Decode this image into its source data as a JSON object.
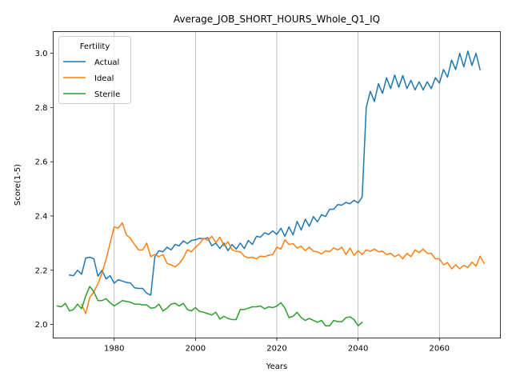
{
  "chart_data": {
    "type": "line",
    "title": "Average_JOB_SHORT_HOURS_Whole_Q1_IQ",
    "xlabel": "Years",
    "ylabel": "Score(1-5)",
    "xlim": [
      1965,
      2075
    ],
    "ylim": [
      1.95,
      3.08
    ],
    "xticks": [
      1980,
      2000,
      2020,
      2040,
      2060
    ],
    "yticks": [
      2.0,
      2.2,
      2.4,
      2.6,
      2.8,
      3.0
    ],
    "grid": "x-only",
    "legend": {
      "title": "Fertility",
      "placement": "top-left"
    },
    "series": [
      {
        "name": "Actual",
        "color": "#1f77b4",
        "x_start": 1969,
        "values": [
          2.182,
          2.18,
          2.2,
          2.185,
          2.245,
          2.248,
          2.242,
          2.178,
          2.2,
          2.168,
          2.18,
          2.152,
          2.165,
          2.16,
          2.155,
          2.153,
          2.135,
          2.133,
          2.133,
          2.115,
          2.108,
          2.25,
          2.272,
          2.268,
          2.285,
          2.275,
          2.295,
          2.29,
          2.308,
          2.298,
          2.31,
          2.312,
          2.318,
          2.315,
          2.32,
          2.29,
          2.3,
          2.28,
          2.3,
          2.272,
          2.295,
          2.278,
          2.3,
          2.28,
          2.31,
          2.295,
          2.325,
          2.322,
          2.338,
          2.332,
          2.345,
          2.332,
          2.355,
          2.325,
          2.36,
          2.33,
          2.38,
          2.348,
          2.388,
          2.362,
          2.398,
          2.378,
          2.405,
          2.398,
          2.425,
          2.425,
          2.442,
          2.44,
          2.45,
          2.445,
          2.458,
          2.448,
          2.47,
          2.8,
          2.86,
          2.822,
          2.888,
          2.852,
          2.91,
          2.87,
          2.92,
          2.875,
          2.918,
          2.87,
          2.9,
          2.865,
          2.895,
          2.865,
          2.895,
          2.87,
          2.91,
          2.89,
          2.94,
          2.912,
          2.975,
          2.94,
          3.0,
          2.95,
          3.008,
          2.955,
          3.0,
          2.94
        ]
      },
      {
        "name": "Ideal",
        "color": "#ff7f0e",
        "x_start": 1972,
        "values": [
          2.073,
          2.04,
          2.1,
          2.12,
          2.15,
          2.19,
          2.24,
          2.3,
          2.36,
          2.355,
          2.375,
          2.33,
          2.318,
          2.295,
          2.275,
          2.275,
          2.3,
          2.25,
          2.258,
          2.25,
          2.258,
          2.225,
          2.22,
          2.212,
          2.225,
          2.245,
          2.275,
          2.268,
          2.285,
          2.298,
          2.318,
          2.31,
          2.325,
          2.302,
          2.322,
          2.29,
          2.305,
          2.275,
          2.27,
          2.268,
          2.252,
          2.245,
          2.248,
          2.242,
          2.252,
          2.25,
          2.255,
          2.258,
          2.285,
          2.278,
          2.312,
          2.295,
          2.298,
          2.282,
          2.288,
          2.272,
          2.285,
          2.27,
          2.268,
          2.26,
          2.272,
          2.268,
          2.282,
          2.275,
          2.285,
          2.258,
          2.282,
          2.255,
          2.272,
          2.258,
          2.275,
          2.27,
          2.278,
          2.268,
          2.27,
          2.258,
          2.262,
          2.25,
          2.258,
          2.242,
          2.262,
          2.25,
          2.275,
          2.265,
          2.278,
          2.262,
          2.262,
          2.242,
          2.242,
          2.22,
          2.228,
          2.205,
          2.22,
          2.205,
          2.218,
          2.21,
          2.23,
          2.215,
          2.252,
          2.225
        ]
      },
      {
        "name": "Sterile",
        "color": "#2ca02c",
        "x_start": 1966,
        "values": [
          2.068,
          2.065,
          2.078,
          2.05,
          2.055,
          2.075,
          2.058,
          2.105,
          2.14,
          2.12,
          2.088,
          2.088,
          2.095,
          2.08,
          2.068,
          2.078,
          2.088,
          2.085,
          2.082,
          2.075,
          2.075,
          2.072,
          2.072,
          2.06,
          2.062,
          2.075,
          2.05,
          2.06,
          2.075,
          2.078,
          2.068,
          2.078,
          2.055,
          2.05,
          2.062,
          2.048,
          2.045,
          2.04,
          2.035,
          2.045,
          2.02,
          2.03,
          2.022,
          2.018,
          2.018,
          2.055,
          2.055,
          2.06,
          2.065,
          2.065,
          2.068,
          2.058,
          2.065,
          2.062,
          2.068,
          2.08,
          2.06,
          2.025,
          2.03,
          2.045,
          2.025,
          2.015,
          2.022,
          2.015,
          2.008,
          2.015,
          1.995,
          1.995,
          2.015,
          2.01,
          2.01,
          2.025,
          2.028,
          2.018,
          1.995,
          2.008
        ]
      }
    ]
  }
}
